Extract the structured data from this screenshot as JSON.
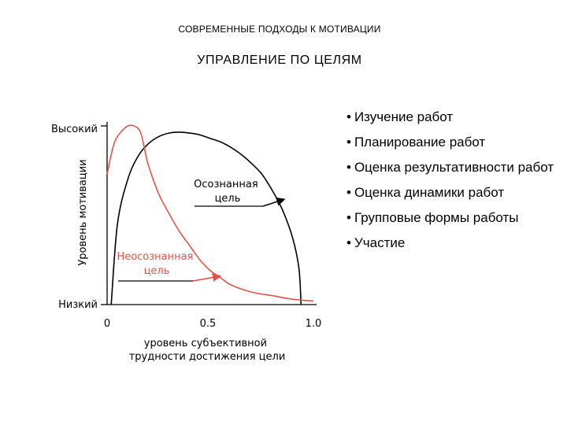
{
  "slide": {
    "header": "СОВРЕМЕННЫЕ ПОДХОДЫ К МОТИВАЦИИ",
    "title": "УПРАВЛЕНИЕ ПО ЦЕЛЯМ",
    "bullet_glyph": "•",
    "bullets": [
      "Изучение работ",
      "Планирование работ",
      "Оценка результативности работ",
      "Оценка динамики работ",
      "Групповые формы работы",
      "Участие"
    ]
  },
  "colors": {
    "conscious": "#000000",
    "unconscious": "#e0554a",
    "axis": "#000000"
  },
  "chart_data": {
    "type": "line",
    "title": "",
    "xlabel": "уровень субъективной трудности достижения цели",
    "ylabel": "Уровень мотивации",
    "xlim": [
      0,
      1.0
    ],
    "ylim": [
      0,
      1
    ],
    "x_ticks": [
      "0",
      "0.5",
      "1.0"
    ],
    "y_tick_labels": {
      "low": "Низкий",
      "high": "Высокий"
    },
    "grid": false,
    "series": [
      {
        "name": "Осознанная цель",
        "color": "#000000",
        "points": [
          [
            0.02,
            0.0
          ],
          [
            0.05,
            0.45
          ],
          [
            0.1,
            0.7
          ],
          [
            0.15,
            0.83
          ],
          [
            0.2,
            0.9
          ],
          [
            0.25,
            0.94
          ],
          [
            0.3,
            0.96
          ],
          [
            0.35,
            0.965
          ],
          [
            0.4,
            0.96
          ],
          [
            0.45,
            0.95
          ],
          [
            0.5,
            0.93
          ],
          [
            0.55,
            0.91
          ],
          [
            0.6,
            0.88
          ],
          [
            0.65,
            0.84
          ],
          [
            0.7,
            0.79
          ],
          [
            0.75,
            0.73
          ],
          [
            0.8,
            0.64
          ],
          [
            0.85,
            0.53
          ],
          [
            0.9,
            0.37
          ],
          [
            0.93,
            0.2
          ],
          [
            0.94,
            0.0
          ]
        ]
      },
      {
        "name": "Неосознанная цель",
        "color": "#e0554a",
        "points": [
          [
            0.0,
            0.73
          ],
          [
            0.02,
            0.84
          ],
          [
            0.04,
            0.92
          ],
          [
            0.07,
            0.97
          ],
          [
            0.1,
            1.0
          ],
          [
            0.13,
            1.0
          ],
          [
            0.16,
            0.97
          ],
          [
            0.18,
            0.88
          ],
          [
            0.2,
            0.78
          ],
          [
            0.25,
            0.62
          ],
          [
            0.3,
            0.51
          ],
          [
            0.35,
            0.41
          ],
          [
            0.4,
            0.33
          ],
          [
            0.45,
            0.25
          ],
          [
            0.5,
            0.19
          ],
          [
            0.55,
            0.15
          ],
          [
            0.6,
            0.11
          ],
          [
            0.7,
            0.07
          ],
          [
            0.8,
            0.05
          ],
          [
            0.9,
            0.03
          ],
          [
            1.0,
            0.02
          ]
        ]
      }
    ],
    "annotations": [
      {
        "text_lines": [
          "Осознанная",
          "цель"
        ],
        "series": "Осознанная цель",
        "arrow_to": [
          0.86,
          0.59
        ]
      },
      {
        "text_lines": [
          "Неосознанная",
          "цель"
        ],
        "series": "Неосознанная цель",
        "arrow_to": [
          0.55,
          0.16
        ]
      }
    ]
  }
}
